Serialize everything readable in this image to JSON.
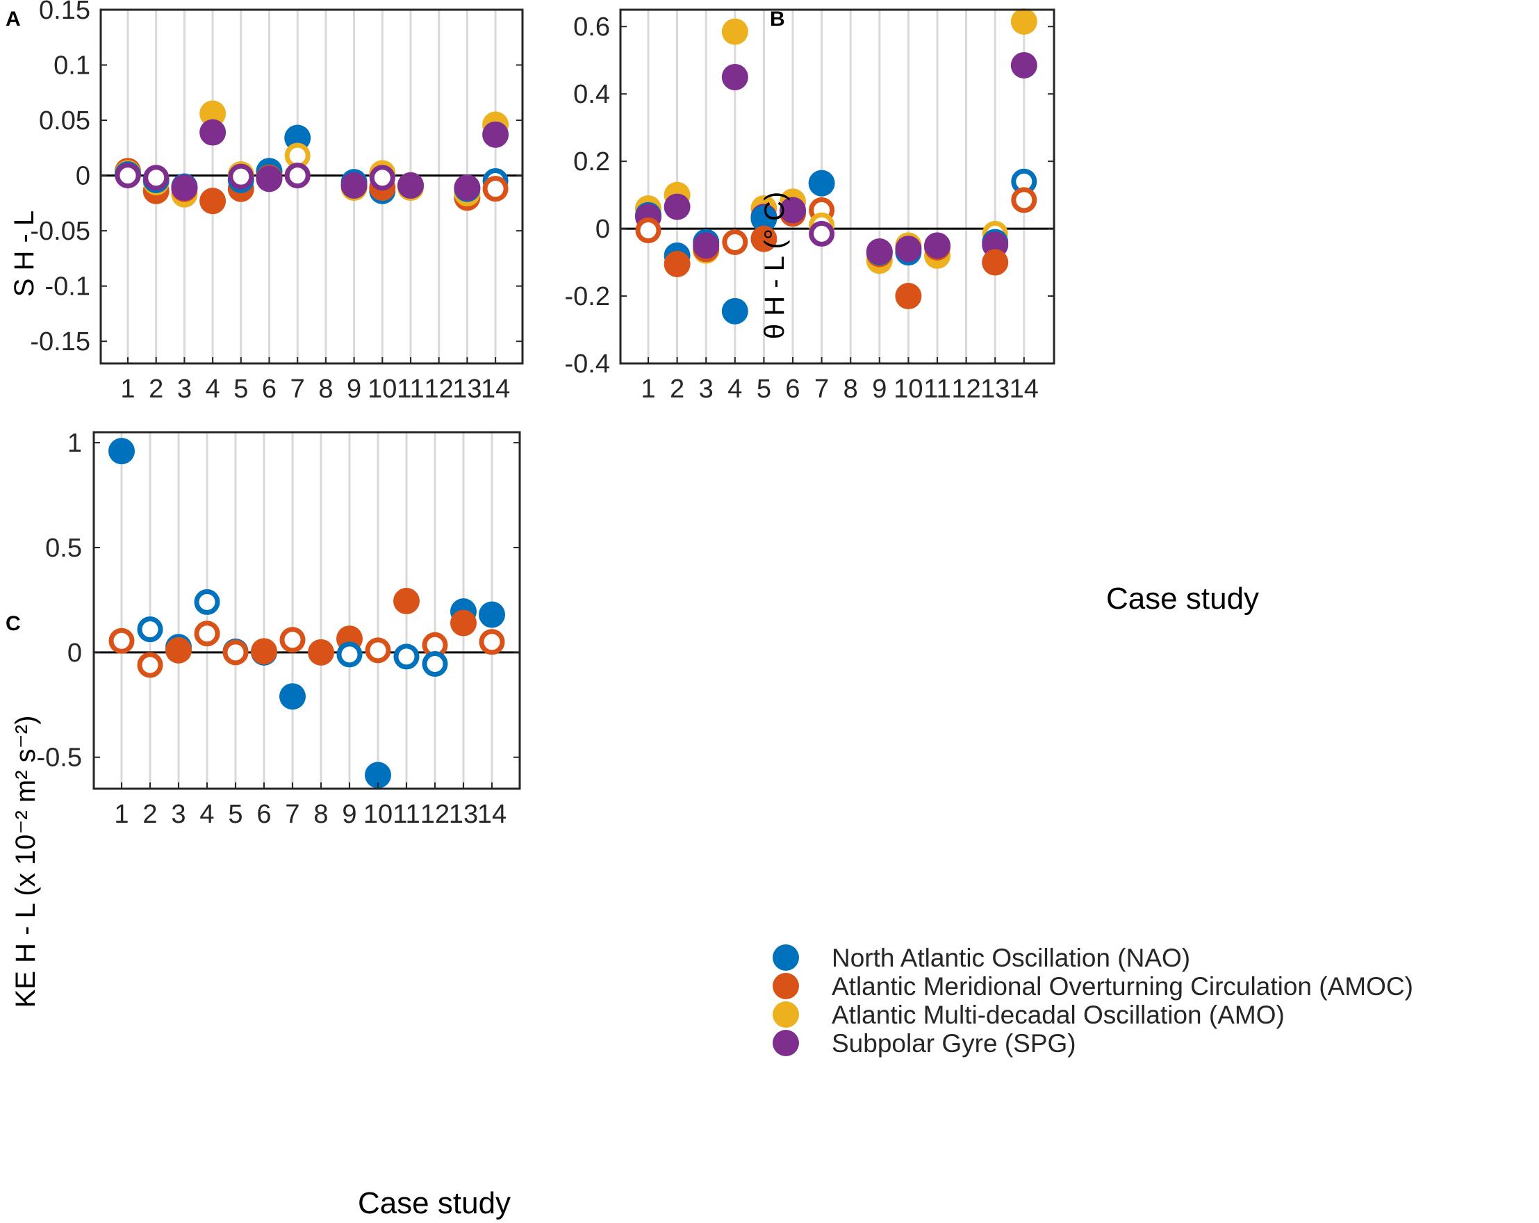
{
  "series_meta": [
    {
      "key": "nao",
      "name": "North Atlantic Oscillation (NAO)",
      "color": "#0072BD"
    },
    {
      "key": "amoc",
      "name": "Atlantic Meridional Overturning Circulation (AMOC)",
      "color": "#D95319"
    },
    {
      "key": "amo",
      "name": "Atlantic Multi-decadal Oscillation (AMO)",
      "color": "#EDB120"
    },
    {
      "key": "spg",
      "name": "Subpolar Gyre (SPG)",
      "color": "#7E2F8E"
    }
  ],
  "chart_data": [
    {
      "panel": "A",
      "type": "scatter",
      "title": "",
      "xlabel": "",
      "ylabel": "S H - L",
      "ylim": [
        -0.17,
        0.15
      ],
      "yticks": [
        -0.15,
        -0.1,
        -0.05,
        0,
        0.05,
        0.1,
        0.15
      ],
      "ytick_labels": [
        "-0.15",
        "-0.1",
        "-0.05",
        "0",
        "0.05",
        "0.1",
        "0.15"
      ],
      "categories": [
        "1",
        "2",
        "3",
        "4",
        "5",
        "6",
        "7",
        "8",
        "9",
        "10",
        "11",
        "12",
        "13",
        "14"
      ],
      "points": [
        {
          "series": "amoc",
          "x": 1,
          "y": 0.004,
          "filled": true
        },
        {
          "series": "amo",
          "x": 1,
          "y": 0.002,
          "filled": true
        },
        {
          "series": "nao",
          "x": 1,
          "y": 0.001,
          "filled": true
        },
        {
          "series": "spg",
          "x": 1,
          "y": 0.0,
          "filled": false
        },
        {
          "series": "amoc",
          "x": 2,
          "y": -0.014,
          "filled": true
        },
        {
          "series": "amo",
          "x": 2,
          "y": -0.006,
          "filled": true
        },
        {
          "series": "nao",
          "x": 2,
          "y": -0.004,
          "filled": true
        },
        {
          "series": "spg",
          "x": 2,
          "y": -0.002,
          "filled": false
        },
        {
          "series": "amo",
          "x": 3,
          "y": -0.017,
          "filled": true
        },
        {
          "series": "amoc",
          "x": 3,
          "y": -0.012,
          "filled": true
        },
        {
          "series": "nao",
          "x": 3,
          "y": -0.01,
          "filled": true
        },
        {
          "series": "spg",
          "x": 3,
          "y": -0.011,
          "filled": true
        },
        {
          "series": "amo",
          "x": 4,
          "y": 0.056,
          "filled": true
        },
        {
          "series": "spg",
          "x": 4,
          "y": 0.039,
          "filled": true
        },
        {
          "series": "amoc",
          "x": 4,
          "y": -0.023,
          "filled": true
        },
        {
          "series": "amoc",
          "x": 5,
          "y": -0.012,
          "filled": true
        },
        {
          "series": "nao",
          "x": 5,
          "y": -0.004,
          "filled": true
        },
        {
          "series": "amo",
          "x": 5,
          "y": 0.001,
          "filled": true
        },
        {
          "series": "spg",
          "x": 5,
          "y": -0.001,
          "filled": false
        },
        {
          "series": "amo",
          "x": 6,
          "y": 0.003,
          "filled": true
        },
        {
          "series": "nao",
          "x": 6,
          "y": 0.004,
          "filled": true
        },
        {
          "series": "amoc",
          "x": 6,
          "y": -0.002,
          "filled": true
        },
        {
          "series": "spg",
          "x": 6,
          "y": -0.003,
          "filled": true
        },
        {
          "series": "nao",
          "x": 7,
          "y": 0.034,
          "filled": true
        },
        {
          "series": "amo",
          "x": 7,
          "y": 0.018,
          "filled": false
        },
        {
          "series": "amoc",
          "x": 7,
          "y": 0.0,
          "filled": false
        },
        {
          "series": "spg",
          "x": 7,
          "y": 0.0,
          "filled": false
        },
        {
          "series": "amo",
          "x": 9,
          "y": -0.011,
          "filled": true
        },
        {
          "series": "amoc",
          "x": 9,
          "y": -0.009,
          "filled": true
        },
        {
          "series": "nao",
          "x": 9,
          "y": -0.006,
          "filled": true
        },
        {
          "series": "spg",
          "x": 9,
          "y": -0.009,
          "filled": true
        },
        {
          "series": "nao",
          "x": 10,
          "y": -0.014,
          "filled": true
        },
        {
          "series": "amoc",
          "x": 10,
          "y": -0.011,
          "filled": true
        },
        {
          "series": "amo",
          "x": 10,
          "y": 0.002,
          "filled": true
        },
        {
          "series": "spg",
          "x": 10,
          "y": -0.002,
          "filled": false
        },
        {
          "series": "amo",
          "x": 11,
          "y": -0.011,
          "filled": true
        },
        {
          "series": "nao",
          "x": 11,
          "y": -0.009,
          "filled": true
        },
        {
          "series": "amoc",
          "x": 11,
          "y": -0.009,
          "filled": true
        },
        {
          "series": "spg",
          "x": 11,
          "y": -0.009,
          "filled": true
        },
        {
          "series": "amoc",
          "x": 13,
          "y": -0.02,
          "filled": true
        },
        {
          "series": "amo",
          "x": 13,
          "y": -0.016,
          "filled": true
        },
        {
          "series": "nao",
          "x": 13,
          "y": -0.012,
          "filled": true
        },
        {
          "series": "spg",
          "x": 13,
          "y": -0.011,
          "filled": true
        },
        {
          "series": "amo",
          "x": 14,
          "y": 0.046,
          "filled": true
        },
        {
          "series": "spg",
          "x": 14,
          "y": 0.037,
          "filled": true
        },
        {
          "series": "nao",
          "x": 14,
          "y": -0.005,
          "filled": false
        },
        {
          "series": "amoc",
          "x": 14,
          "y": -0.012,
          "filled": false
        }
      ]
    },
    {
      "panel": "B",
      "type": "scatter",
      "title": "",
      "xlabel": "Case study",
      "ylabel": "θ H - L (° C)",
      "ylim": [
        -0.4,
        0.65
      ],
      "yticks": [
        -0.4,
        -0.2,
        0,
        0.2,
        0.4,
        0.6
      ],
      "ytick_labels": [
        "-0.4",
        "-0.2",
        "0",
        "0.2",
        "0.4",
        "0.6"
      ],
      "categories": [
        "1",
        "2",
        "3",
        "4",
        "5",
        "6",
        "7",
        "8",
        "9",
        "10",
        "11",
        "12",
        "13",
        "14"
      ],
      "points": [
        {
          "series": "amo",
          "x": 1,
          "y": 0.06,
          "filled": true
        },
        {
          "series": "nao",
          "x": 1,
          "y": 0.04,
          "filled": true
        },
        {
          "series": "spg",
          "x": 1,
          "y": 0.035,
          "filled": true
        },
        {
          "series": "amoc",
          "x": 1,
          "y": -0.005,
          "filled": false
        },
        {
          "series": "amo",
          "x": 2,
          "y": 0.1,
          "filled": true
        },
        {
          "series": "spg",
          "x": 2,
          "y": 0.065,
          "filled": true
        },
        {
          "series": "nao",
          "x": 2,
          "y": -0.08,
          "filled": true
        },
        {
          "series": "amoc",
          "x": 2,
          "y": -0.105,
          "filled": true
        },
        {
          "series": "amo",
          "x": 3,
          "y": -0.065,
          "filled": true
        },
        {
          "series": "amoc",
          "x": 3,
          "y": -0.06,
          "filled": true
        },
        {
          "series": "nao",
          "x": 3,
          "y": -0.04,
          "filled": true
        },
        {
          "series": "spg",
          "x": 3,
          "y": -0.05,
          "filled": true
        },
        {
          "series": "amo",
          "x": 4,
          "y": 0.585,
          "filled": true
        },
        {
          "series": "spg",
          "x": 4,
          "y": 0.45,
          "filled": true
        },
        {
          "series": "amoc",
          "x": 4,
          "y": -0.04,
          "filled": false
        },
        {
          "series": "nao",
          "x": 4,
          "y": -0.245,
          "filled": true
        },
        {
          "series": "amo",
          "x": 5,
          "y": 0.06,
          "filled": true
        },
        {
          "series": "spg",
          "x": 5,
          "y": 0.035,
          "filled": true
        },
        {
          "series": "nao",
          "x": 5,
          "y": 0.03,
          "filled": true
        },
        {
          "series": "amoc",
          "x": 5,
          "y": -0.03,
          "filled": true
        },
        {
          "series": "amo",
          "x": 6,
          "y": 0.08,
          "filled": true
        },
        {
          "series": "nao",
          "x": 6,
          "y": 0.05,
          "filled": true
        },
        {
          "series": "amoc",
          "x": 6,
          "y": 0.045,
          "filled": true
        },
        {
          "series": "spg",
          "x": 6,
          "y": 0.055,
          "filled": true
        },
        {
          "series": "nao",
          "x": 7,
          "y": 0.135,
          "filled": true
        },
        {
          "series": "amoc",
          "x": 7,
          "y": 0.055,
          "filled": false
        },
        {
          "series": "amo",
          "x": 7,
          "y": 0.01,
          "filled": false
        },
        {
          "series": "spg",
          "x": 7,
          "y": -0.015,
          "filled": false
        },
        {
          "series": "amo",
          "x": 9,
          "y": -0.095,
          "filled": true
        },
        {
          "series": "amoc",
          "x": 9,
          "y": -0.075,
          "filled": true
        },
        {
          "series": "nao",
          "x": 9,
          "y": -0.07,
          "filled": true
        },
        {
          "series": "spg",
          "x": 9,
          "y": -0.068,
          "filled": true
        },
        {
          "series": "amo",
          "x": 10,
          "y": -0.05,
          "filled": true
        },
        {
          "series": "nao",
          "x": 10,
          "y": -0.07,
          "filled": true
        },
        {
          "series": "spg",
          "x": 10,
          "y": -0.06,
          "filled": true
        },
        {
          "series": "amoc",
          "x": 10,
          "y": -0.2,
          "filled": true
        },
        {
          "series": "amo",
          "x": 11,
          "y": -0.08,
          "filled": true
        },
        {
          "series": "nao",
          "x": 11,
          "y": -0.055,
          "filled": true
        },
        {
          "series": "amoc",
          "x": 11,
          "y": -0.055,
          "filled": true
        },
        {
          "series": "spg",
          "x": 11,
          "y": -0.05,
          "filled": true
        },
        {
          "series": "amo",
          "x": 13,
          "y": -0.015,
          "filled": false
        },
        {
          "series": "nao",
          "x": 13,
          "y": -0.04,
          "filled": true
        },
        {
          "series": "spg",
          "x": 13,
          "y": -0.048,
          "filled": true
        },
        {
          "series": "amoc",
          "x": 13,
          "y": -0.1,
          "filled": true
        },
        {
          "series": "amo",
          "x": 14,
          "y": 0.615,
          "filled": true
        },
        {
          "series": "spg",
          "x": 14,
          "y": 0.485,
          "filled": true
        },
        {
          "series": "nao",
          "x": 14,
          "y": 0.14,
          "filled": false
        },
        {
          "series": "amoc",
          "x": 14,
          "y": 0.085,
          "filled": false
        }
      ]
    },
    {
      "panel": "C",
      "type": "scatter",
      "title": "",
      "xlabel": "Case study",
      "ylabel": "KE H - L (x 10⁻² m² s⁻²)",
      "ylim": [
        -0.65,
        1.05
      ],
      "yticks": [
        -0.5,
        0,
        0.5,
        1
      ],
      "ytick_labels": [
        "-0.5",
        "0",
        "0.5",
        "1"
      ],
      "categories": [
        "1",
        "2",
        "3",
        "4",
        "5",
        "6",
        "7",
        "8",
        "9",
        "10",
        "11",
        "12",
        "13",
        "14"
      ],
      "points": [
        {
          "series": "nao",
          "x": 1,
          "y": 0.96,
          "filled": true
        },
        {
          "series": "amoc",
          "x": 1,
          "y": 0.055,
          "filled": false
        },
        {
          "series": "nao",
          "x": 2,
          "y": 0.11,
          "filled": false
        },
        {
          "series": "amoc",
          "x": 2,
          "y": -0.06,
          "filled": false
        },
        {
          "series": "nao",
          "x": 3,
          "y": 0.025,
          "filled": true
        },
        {
          "series": "amoc",
          "x": 3,
          "y": 0.01,
          "filled": true
        },
        {
          "series": "nao",
          "x": 4,
          "y": 0.24,
          "filled": false
        },
        {
          "series": "amoc",
          "x": 4,
          "y": 0.09,
          "filled": false
        },
        {
          "series": "nao",
          "x": 5,
          "y": 0.005,
          "filled": false
        },
        {
          "series": "amoc",
          "x": 5,
          "y": 0.0,
          "filled": false
        },
        {
          "series": "nao",
          "x": 6,
          "y": 0.0,
          "filled": true
        },
        {
          "series": "amoc",
          "x": 6,
          "y": 0.005,
          "filled": true
        },
        {
          "series": "amoc",
          "x": 7,
          "y": 0.06,
          "filled": false
        },
        {
          "series": "nao",
          "x": 7,
          "y": -0.21,
          "filled": true
        },
        {
          "series": "amoc",
          "x": 8,
          "y": 0.0,
          "filled": true
        },
        {
          "series": "amoc",
          "x": 9,
          "y": 0.065,
          "filled": true
        },
        {
          "series": "nao",
          "x": 9,
          "y": -0.01,
          "filled": false
        },
        {
          "series": "amoc",
          "x": 10,
          "y": 0.01,
          "filled": false
        },
        {
          "series": "nao",
          "x": 10,
          "y": -0.585,
          "filled": true
        },
        {
          "series": "amoc",
          "x": 11,
          "y": 0.245,
          "filled": true
        },
        {
          "series": "nao",
          "x": 11,
          "y": -0.02,
          "filled": false
        },
        {
          "series": "amoc",
          "x": 12,
          "y": 0.035,
          "filled": false
        },
        {
          "series": "nao",
          "x": 12,
          "y": -0.055,
          "filled": false
        },
        {
          "series": "nao",
          "x": 13,
          "y": 0.195,
          "filled": true
        },
        {
          "series": "amoc",
          "x": 13,
          "y": 0.14,
          "filled": true
        },
        {
          "series": "nao",
          "x": 14,
          "y": 0.18,
          "filled": true
        },
        {
          "series": "amoc",
          "x": 14,
          "y": 0.05,
          "filled": false
        }
      ]
    }
  ]
}
